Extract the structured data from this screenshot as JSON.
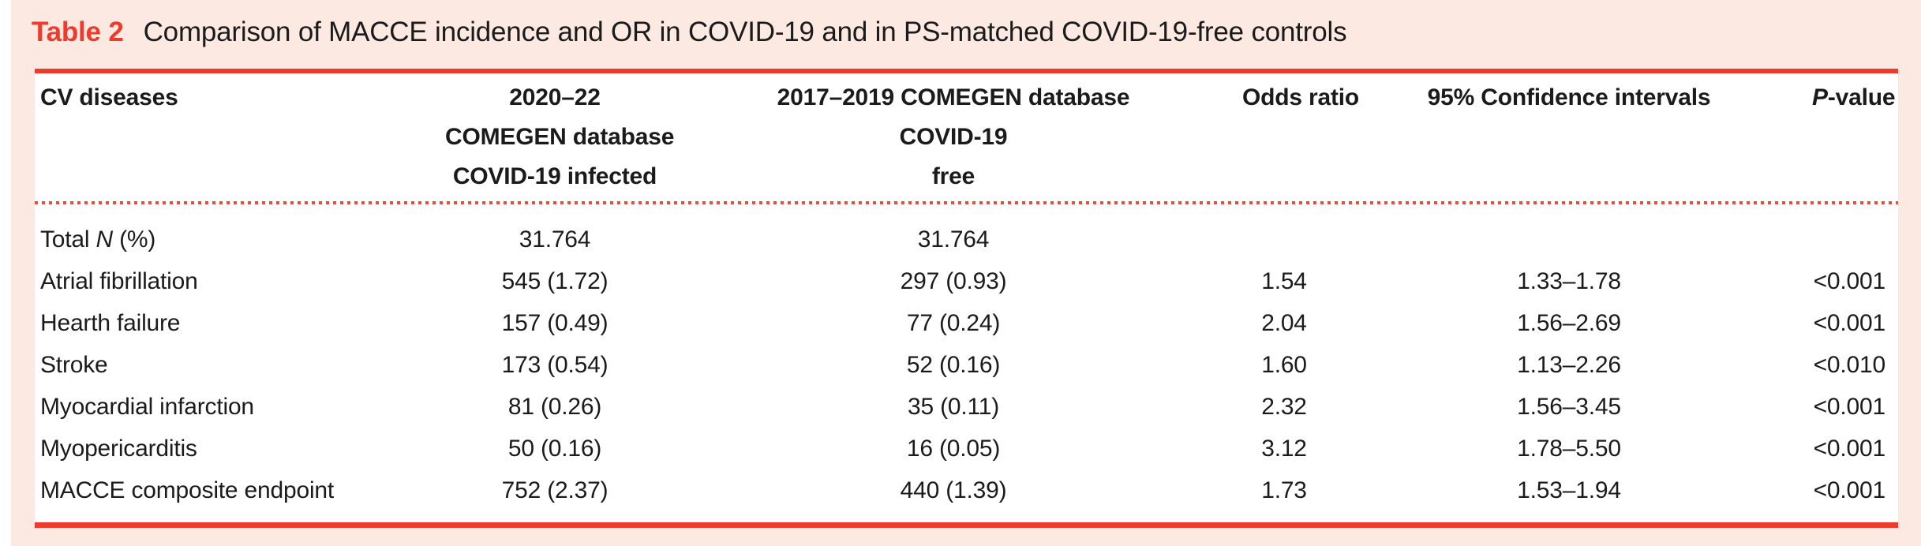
{
  "title": {
    "label": "Table 2",
    "caption": "Comparison of MACCE incidence and OR in COVID-19 and in PS-matched COVID-19-free controls"
  },
  "table": {
    "header": {
      "cv_diseases": "CV diseases",
      "infected_l1": "2020–22",
      "infected_l2": "COMEGEN database",
      "infected_l3": "COVID-19 infected",
      "free_l1": "2017–2019 COMEGEN database",
      "free_l2": "COVID-19",
      "free_l3": "free",
      "odds_ratio": "Odds ratio",
      "confidence_intervals": "95% Confidence intervals",
      "p_italic": "P",
      "p_rest": "-value"
    },
    "rows": [
      {
        "label_pre": "Total ",
        "label_em": "N",
        "label_post": " (%)",
        "infected": "31.764",
        "free": "31.764",
        "odds_ratio": "",
        "ci": "",
        "p": ""
      },
      {
        "label_pre": "Atrial fibrillation",
        "label_em": "",
        "label_post": "",
        "infected": "545 (1.72)",
        "free": "297 (0.93)",
        "odds_ratio": "1.54",
        "ci": "1.33–1.78",
        "p": "<0.001"
      },
      {
        "label_pre": "Hearth failure",
        "label_em": "",
        "label_post": "",
        "infected": "157 (0.49)",
        "free": "77 (0.24)",
        "odds_ratio": "2.04",
        "ci": "1.56–2.69",
        "p": "<0.001"
      },
      {
        "label_pre": "Stroke",
        "label_em": "",
        "label_post": "",
        "infected": "173 (0.54)",
        "free": "52 (0.16)",
        "odds_ratio": "1.60",
        "ci": "1.13–2.26",
        "p": "<0.010"
      },
      {
        "label_pre": "Myocardial infarction",
        "label_em": "",
        "label_post": "",
        "infected": "81 (0.26)",
        "free": "35 (0.11)",
        "odds_ratio": "2.32",
        "ci": "1.56–3.45",
        "p": "<0.001"
      },
      {
        "label_pre": "Myopericarditis",
        "label_em": "",
        "label_post": "",
        "infected": "50 (0.16)",
        "free": "16 (0.05)",
        "odds_ratio": "3.12",
        "ci": "1.78–5.50",
        "p": "<0.001"
      },
      {
        "label_pre": "MACCE composite endpoint",
        "label_em": "",
        "label_post": "",
        "infected": "752 (2.37)",
        "free": "440 (1.39)",
        "odds_ratio": "1.73",
        "ci": "1.53–1.94",
        "p": "<0.001"
      }
    ]
  },
  "colors": {
    "red": "#ef3b2d",
    "dotted_red": "#ed4c3c",
    "page_bg": "#fbe9e2",
    "panel_bg": "#ffffff",
    "text": "#1b1b1b"
  }
}
